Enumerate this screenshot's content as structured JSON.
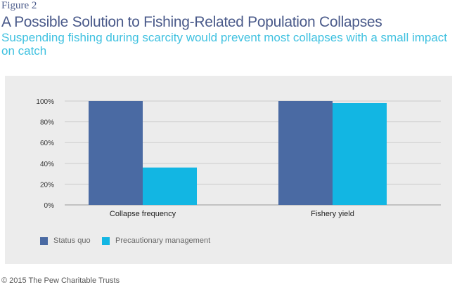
{
  "figure_label": "Figure 2",
  "title": "A Possible Solution to Fishing-Related Population Collapses",
  "subtitle": "Suspending fishing during scarcity would prevent most collapses with a small impact on catch",
  "footer": "© 2015 The Pew Charitable Trusts",
  "chart_data": {
    "type": "bar",
    "categories": [
      "Collapse frequency",
      "Fishery yield"
    ],
    "series": [
      {
        "name": "Status quo",
        "color": "#4a6aa3",
        "values": [
          100,
          100
        ]
      },
      {
        "name": "Precautionary management",
        "color": "#12b6e3",
        "values": [
          36,
          98
        ]
      }
    ],
    "yticks": [
      "0%",
      "20%",
      "40%",
      "60%",
      "80%",
      "100%"
    ],
    "ylim": [
      0,
      100
    ],
    "grid": true,
    "legend": "bottom-left"
  }
}
